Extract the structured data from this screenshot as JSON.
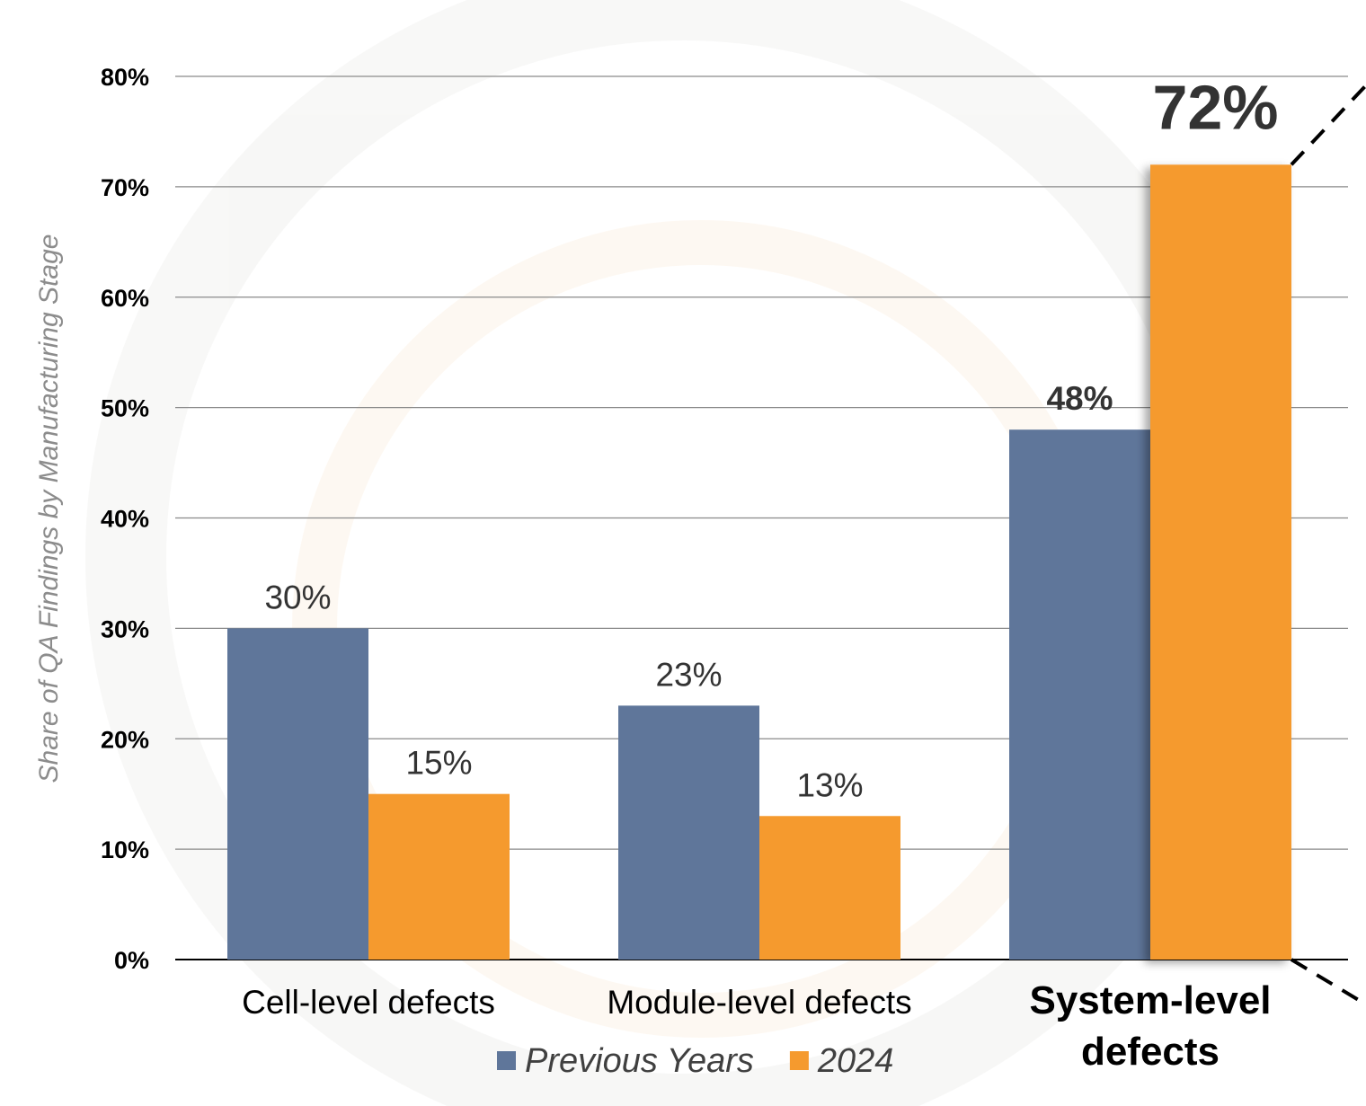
{
  "chart_data": {
    "type": "bar",
    "categories": [
      "Cell-level defects",
      "Module-level defects",
      "System-level defects"
    ],
    "series": [
      {
        "name": "Previous Years",
        "values": [
          30,
          23,
          48
        ],
        "labels": [
          "30%",
          "23%",
          "48%"
        ],
        "color": "#5f769a"
      },
      {
        "name": "2024",
        "values": [
          15,
          13,
          72
        ],
        "labels": [
          "15%",
          "13%",
          "72%"
        ],
        "color": "#f59a2e"
      }
    ],
    "ylabel": "Share of QA Findings by Manufacturing Stage",
    "xlabel": "",
    "ylim": [
      0,
      80
    ],
    "yticks": [
      0,
      10,
      20,
      30,
      40,
      50,
      60,
      70,
      80
    ],
    "ytick_labels": [
      "0%",
      "10%",
      "20%",
      "30%",
      "40%",
      "50%",
      "60%",
      "70%",
      "80%"
    ],
    "highlight_category": "System-level defects",
    "highlight_label_color": "#f59a2e",
    "grid": true,
    "legend_position": "bottom"
  }
}
